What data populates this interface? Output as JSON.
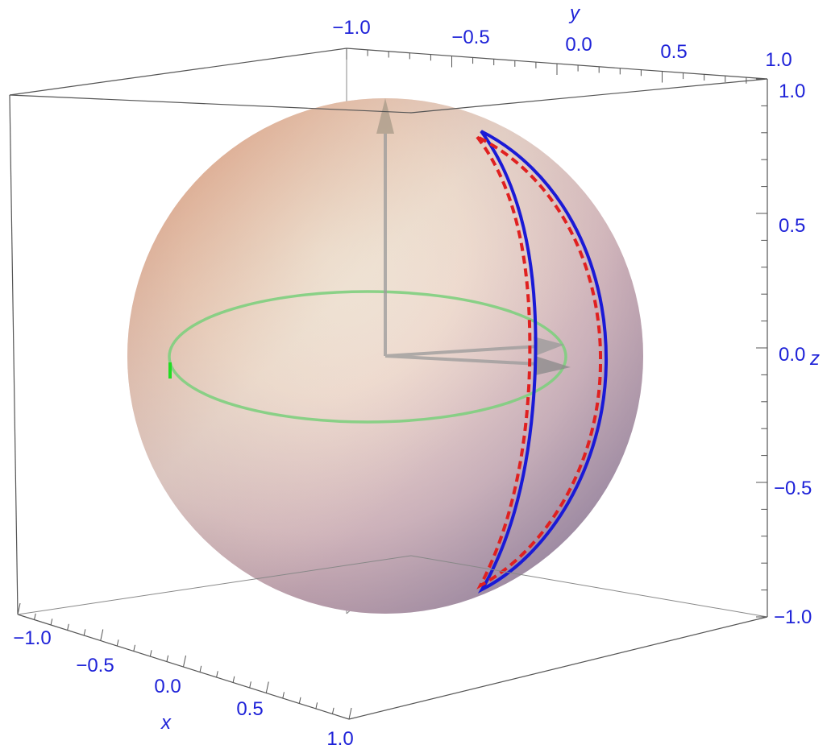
{
  "axes": {
    "x": {
      "label": "x",
      "ticks": [
        "−1.0",
        "−0.5",
        "0.0",
        "0.5",
        "1.0"
      ]
    },
    "y": {
      "label": "y",
      "ticks": [
        "−1.0",
        "−0.5",
        "0.0",
        "0.5",
        "1.0"
      ]
    },
    "z": {
      "label": "z",
      "ticks": [
        "1.0",
        "0.5",
        "0.0",
        "−0.5",
        "−1.0"
      ]
    }
  },
  "colors": {
    "tick_text": "#1e22d8",
    "equator": "#7ee87e",
    "blue_curve": "#1a1ad6",
    "red_dashed": "#e02020",
    "arrow": "#9a9a9a"
  }
}
